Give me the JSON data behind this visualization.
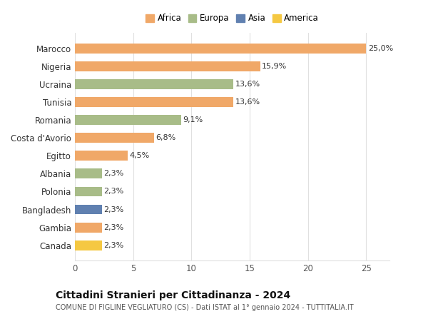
{
  "categories": [
    "Canada",
    "Gambia",
    "Bangladesh",
    "Polonia",
    "Albania",
    "Egitto",
    "Costa d'Avorio",
    "Romania",
    "Tunisia",
    "Ucraina",
    "Nigeria",
    "Marocco"
  ],
  "values": [
    2.3,
    2.3,
    2.3,
    2.3,
    2.3,
    4.5,
    6.8,
    9.1,
    13.6,
    13.6,
    15.9,
    25.0
  ],
  "labels": [
    "2,3%",
    "2,3%",
    "2,3%",
    "2,3%",
    "2,3%",
    "4,5%",
    "6,8%",
    "9,1%",
    "13,6%",
    "13,6%",
    "15,9%",
    "25,0%"
  ],
  "colors": [
    "#F5C842",
    "#F0A868",
    "#6080B0",
    "#A8BC88",
    "#A8BC88",
    "#F0A868",
    "#F0A868",
    "#A8BC88",
    "#F0A868",
    "#A8BC88",
    "#F0A868",
    "#F0A868"
  ],
  "legend_labels": [
    "Africa",
    "Europa",
    "Asia",
    "America"
  ],
  "legend_colors": [
    "#F0A868",
    "#A8BC88",
    "#6080B0",
    "#F5C842"
  ],
  "title": "Cittadini Stranieri per Cittadinanza - 2024",
  "subtitle": "COMUNE DI FIGLINE VEGLIATURO (CS) - Dati ISTAT al 1° gennaio 2024 - TUTTITALIA.IT",
  "xlim": [
    0,
    27
  ],
  "xticks": [
    0,
    5,
    10,
    15,
    20,
    25
  ],
  "bar_height": 0.55,
  "background_color": "#ffffff",
  "grid_color": "#e0e0e0"
}
